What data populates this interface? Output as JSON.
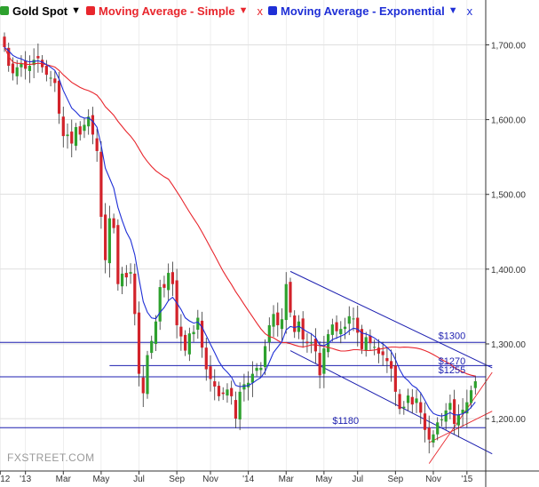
{
  "toolbar": {
    "gold": {
      "label": "Gold Spot",
      "caret": "▼",
      "color": "#000000"
    },
    "sma": {
      "label": "Moving Average - Simple",
      "caret": "▼",
      "close": "x",
      "color": "#e8262d"
    },
    "ema": {
      "label": "Moving Average - Exponential",
      "caret": "▼",
      "close": "x",
      "color": "#1f2fd6"
    }
  },
  "watermark": "FXSTREET.COM",
  "colors": {
    "up": "#2ea12e",
    "down": "#d2222a",
    "sma": "#e8262d",
    "ema": "#1f2fd6",
    "level": "#1c1fb0",
    "channel": "#1c1fb0",
    "grid": "#cccccc",
    "axis": "#333333"
  },
  "chart_data": {
    "type": "candlestick",
    "y_range": [
      1130,
      1760
    ],
    "y_ticks": [
      1200,
      1300,
      1400,
      1500,
      1600,
      1700
    ],
    "y_tick_labels": [
      "1,200.00",
      "1,300.00",
      "1,400.00",
      "1,500.00",
      "1,600.00",
      "1,700.00"
    ],
    "x_labels": [
      {
        "i": -1,
        "label": "12"
      },
      {
        "i": 5,
        "label": "'13"
      },
      {
        "i": 14,
        "label": "Mar"
      },
      {
        "i": 23,
        "label": "May"
      },
      {
        "i": 32,
        "label": "Jul"
      },
      {
        "i": 41,
        "label": "Sep"
      },
      {
        "i": 49,
        "label": "Nov"
      },
      {
        "i": 58,
        "label": "'14"
      },
      {
        "i": 67,
        "label": "Mar"
      },
      {
        "i": 76,
        "label": "May"
      },
      {
        "i": 84,
        "label": "Jul"
      },
      {
        "i": 93,
        "label": "Sep"
      },
      {
        "i": 102,
        "label": "Nov"
      },
      {
        "i": 110,
        "label": "'15"
      }
    ],
    "closes": [
      1697,
      1672,
      1662,
      1670,
      1675,
      1668,
      1672,
      1680,
      1682,
      1670,
      1660,
      1656,
      1649,
      1608,
      1578,
      1580,
      1568,
      1590,
      1580,
      1593,
      1604,
      1580,
      1558,
      1470,
      1412,
      1468,
      1455,
      1380,
      1394,
      1389,
      1396,
      1340,
      1260,
      1234,
      1285,
      1304,
      1330,
      1376,
      1375,
      1395,
      1380,
      1325,
      1310,
      1291,
      1314,
      1316,
      1335,
      1295,
      1266,
      1253,
      1243,
      1230,
      1233,
      1239,
      1230,
      1200,
      1236,
      1246,
      1248,
      1260,
      1268,
      1268,
      1297,
      1325,
      1340,
      1325,
      1333,
      1380,
      1342,
      1316,
      1330,
      1306,
      1301,
      1302,
      1290,
      1258,
      1294,
      1313,
      1326,
      1317,
      1320,
      1323,
      1337,
      1334,
      1315,
      1293,
      1309,
      1301,
      1296,
      1287,
      1285,
      1277,
      1267,
      1236,
      1213,
      1216,
      1231,
      1219,
      1227,
      1208,
      1185,
      1172,
      1179,
      1195,
      1199,
      1211,
      1221,
      1193,
      1205,
      1212,
      1222,
      1238,
      1250
    ],
    "annotations": [
      {
        "label": "$1300",
        "price": 1302,
        "x_index": 103.2
      },
      {
        "label": "$1270",
        "price": 1268,
        "x_index": 103.2
      },
      {
        "label": "$1255",
        "price": 1256,
        "x_index": 103.2
      },
      {
        "label": "$1180",
        "price": 1188,
        "x_index": 78
      }
    ],
    "horizontal_levels": [
      1302,
      1256,
      1188
    ],
    "short_levels": [
      {
        "price": 1271,
        "from_index": 25,
        "to_index": 116
      }
    ],
    "channel": {
      "upper": {
        "from": [
          68,
          1397
        ],
        "to": [
          116,
          1268
        ]
      },
      "lower": {
        "from": [
          68,
          1291
        ],
        "to": [
          116,
          1153
        ]
      }
    },
    "support_lines": [
      {
        "from": [
          101,
          1140
        ],
        "to": [
          116,
          1262
        ]
      },
      {
        "from": [
          101,
          1168
        ],
        "to": [
          116,
          1210
        ]
      }
    ]
  }
}
